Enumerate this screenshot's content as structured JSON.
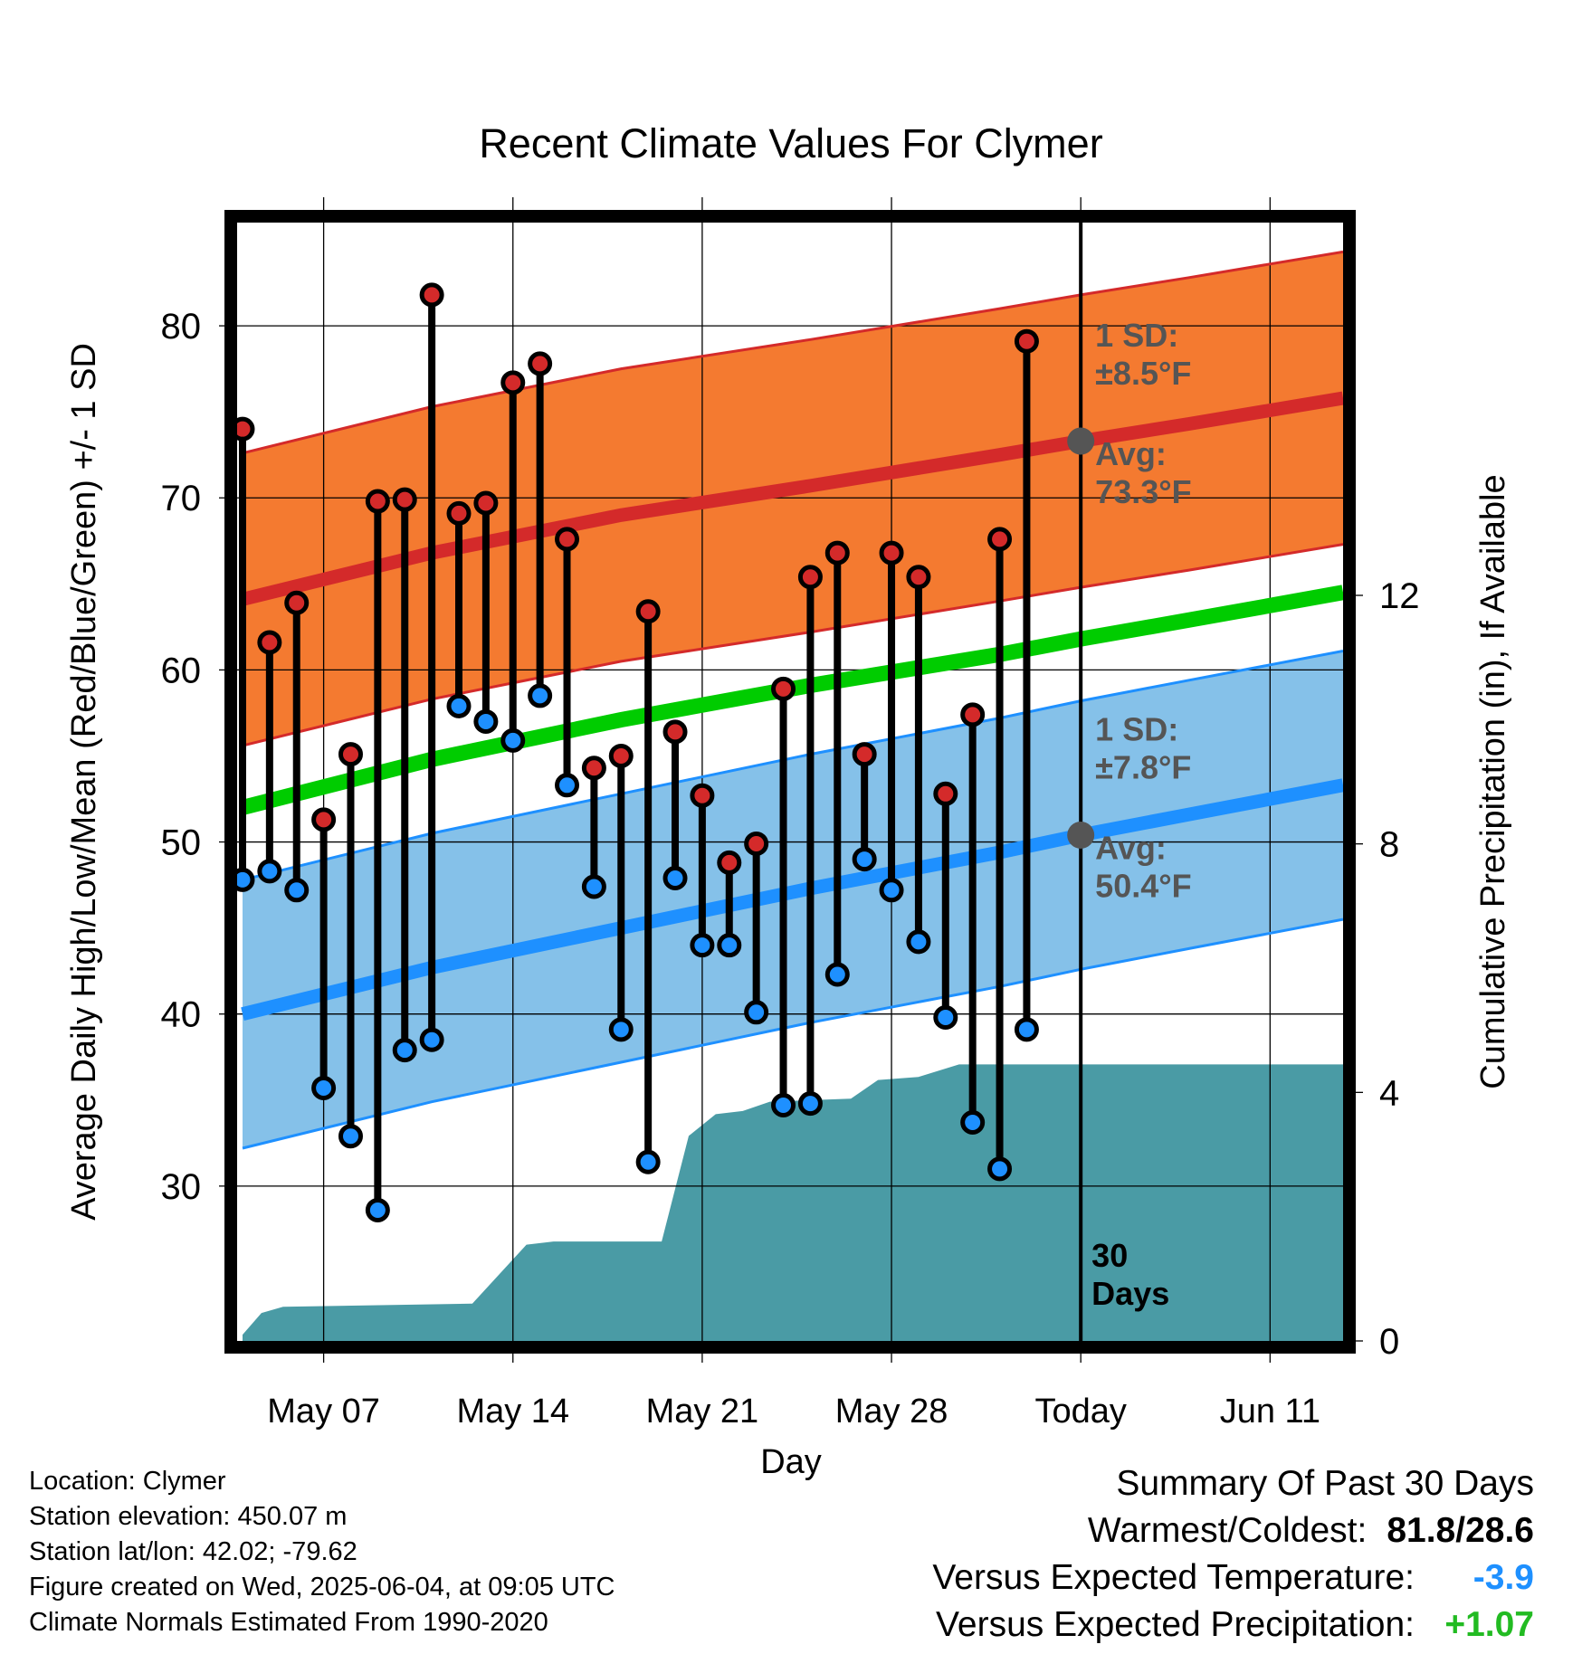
{
  "chart_data": {
    "type": "line",
    "title": "Recent Climate Values For Clymer",
    "xlabel": "Day",
    "ylabel": "Average Daily High/Low/Mean (Red/Blue/Green) +/- 1 SD",
    "y2label": "Cumulative Precipitation (in), If Available",
    "x_range_days": [
      -31.2,
      9.7
    ],
    "x_ticks": [
      {
        "day": -28,
        "label": "May 07"
      },
      {
        "day": -21,
        "label": "May 14"
      },
      {
        "day": -14,
        "label": "May 21"
      },
      {
        "day": -7,
        "label": "May 28"
      },
      {
        "day": 0,
        "label": "Today"
      },
      {
        "day": 7,
        "label": "Jun 11"
      }
    ],
    "ylim": [
      21,
      86
    ],
    "y_ticks": [
      30,
      40,
      50,
      60,
      70,
      80
    ],
    "y2lim": [
      0,
      18
    ],
    "y2_ticks": [
      0,
      4,
      8,
      12
    ],
    "grid": true,
    "normals": {
      "days": [
        -31,
        -24,
        -17,
        -10,
        -3,
        0,
        4,
        9.7
      ],
      "high_mean": [
        64.1,
        66.8,
        69.0,
        70.7,
        72.5,
        73.3,
        74.3,
        75.8
      ],
      "low_mean": [
        40.0,
        42.7,
        45.0,
        47.3,
        49.4,
        50.4,
        51.6,
        53.3
      ],
      "avg_mean": [
        52.0,
        54.8,
        57.1,
        59.1,
        60.9,
        61.8,
        62.9,
        64.5
      ],
      "high_sd": 8.5,
      "low_sd": 7.8
    },
    "series": [
      {
        "name": "High",
        "color": "#cc2222",
        "points": [
          [
            -31,
            74.0
          ],
          [
            -30,
            61.6
          ],
          [
            -29,
            63.9
          ],
          [
            -28,
            51.3
          ],
          [
            -27,
            55.1
          ],
          [
            -26,
            69.8
          ],
          [
            -25,
            69.9
          ],
          [
            -24,
            81.8
          ],
          [
            -23,
            69.1
          ],
          [
            -22,
            69.7
          ],
          [
            -21,
            76.7
          ],
          [
            -20,
            77.8
          ],
          [
            -19,
            67.6
          ],
          [
            -18,
            54.3
          ],
          [
            -17,
            55.0
          ],
          [
            -16,
            63.4
          ],
          [
            -15,
            56.4
          ],
          [
            -14,
            52.7
          ],
          [
            -13,
            48.8
          ],
          [
            -12,
            49.9
          ],
          [
            -11,
            58.9
          ],
          [
            -10,
            65.4
          ],
          [
            -9,
            66.8
          ],
          [
            -8,
            55.1
          ],
          [
            -7,
            66.8
          ],
          [
            -6,
            65.4
          ],
          [
            -5,
            52.8
          ],
          [
            -4,
            57.4
          ],
          [
            -3,
            67.6
          ],
          [
            -2,
            79.1
          ]
        ]
      },
      {
        "name": "Low",
        "color": "#1e90ff",
        "points": [
          [
            -31,
            47.8
          ],
          [
            -30,
            48.3
          ],
          [
            -29,
            47.2
          ],
          [
            -28,
            35.7
          ],
          [
            -27,
            32.9
          ],
          [
            -26,
            28.6
          ],
          [
            -25,
            37.9
          ],
          [
            -24,
            38.5
          ],
          [
            -23,
            57.9
          ],
          [
            -22,
            57.0
          ],
          [
            -21,
            55.9
          ],
          [
            -20,
            58.5
          ],
          [
            -19,
            53.3
          ],
          [
            -18,
            47.4
          ],
          [
            -17,
            39.1
          ],
          [
            -16,
            31.4
          ],
          [
            -15,
            47.9
          ],
          [
            -14,
            44.0
          ],
          [
            -13,
            44.0
          ],
          [
            -12,
            40.1
          ],
          [
            -11,
            34.7
          ],
          [
            -10,
            34.8
          ],
          [
            -9,
            42.3
          ],
          [
            -8,
            49.0
          ],
          [
            -7,
            47.2
          ],
          [
            -6,
            44.2
          ],
          [
            -5,
            39.8
          ],
          [
            -4,
            33.7
          ],
          [
            -3,
            31.0
          ],
          [
            -2,
            39.1
          ]
        ]
      },
      {
        "name": "Cumulative Precipitation",
        "color": "#4a9ba5",
        "points": [
          [
            -31,
            0.1
          ],
          [
            -30.3,
            0.45
          ],
          [
            -29.5,
            0.55
          ],
          [
            -22.5,
            0.6
          ],
          [
            -20.5,
            1.55
          ],
          [
            -19.5,
            1.6
          ],
          [
            -15.5,
            1.6
          ],
          [
            -14.5,
            3.3
          ],
          [
            -13.5,
            3.65
          ],
          [
            -12.5,
            3.7
          ],
          [
            -11.5,
            3.85
          ],
          [
            -8.5,
            3.9
          ],
          [
            -7.5,
            4.2
          ],
          [
            -6,
            4.25
          ],
          [
            -4.5,
            4.45
          ],
          [
            9.7,
            4.45
          ]
        ]
      }
    ],
    "annotations": {
      "high_sd_label": [
        "1 SD:",
        "±8.5°F"
      ],
      "high_avg_label": [
        "Avg:",
        "73.3°F"
      ],
      "low_sd_label": [
        "1 SD:",
        "±7.8°F"
      ],
      "low_avg_label": [
        "Avg:",
        "50.4°F"
      ],
      "today_label": [
        "30",
        "Days"
      ]
    },
    "colors": {
      "high_band": "#f47a30",
      "high_line": "#d42a2a",
      "low_band": "#85c1e9",
      "low_line": "#1e90ff",
      "mean_line": "#00cc00",
      "precip": "#4a9ba5",
      "annot": "#555555"
    }
  },
  "info": {
    "location": "Location: Clymer",
    "elevation": "Station elevation: 450.07 m",
    "latlon": "Station lat/lon: 42.02; -79.62",
    "created": "Figure created on Wed, 2025-06-04, at 09:05 UTC",
    "normals": "Climate Normals Estimated From 1990-2020"
  },
  "summary": {
    "title": "Summary Of Past 30 Days",
    "warm_cold_label": "Warmest/Coldest:",
    "warm_cold_value": "81.8/28.6",
    "temp_label": "Versus Expected Temperature:",
    "temp_value": "-3.9",
    "precip_label": "Versus Expected Precipitation:",
    "precip_value": "+1.07"
  }
}
